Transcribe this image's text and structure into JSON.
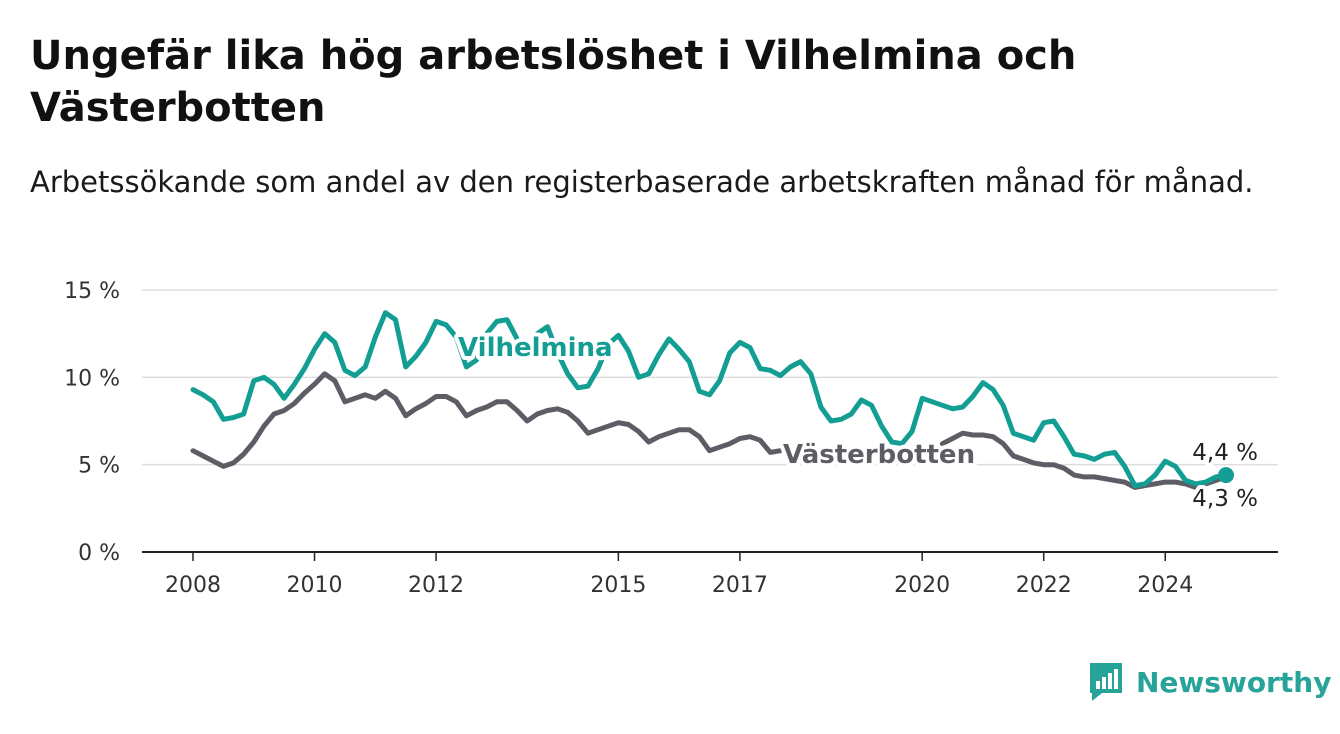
{
  "title": "Ungefär lika hög arbetslöshet i Vilhelmina och Västerbotten",
  "subtitle": "Arbetssökande som andel av den registerbaserade arbetskraften månad för månad.",
  "brand": {
    "name": "Newsworthy",
    "color": "#27a39a"
  },
  "colors": {
    "vilhelmina": "#139e94",
    "vasterbotten": "#5d5d66",
    "grid": "#dddddd",
    "axis": "#222222"
  },
  "chart_data": {
    "type": "line",
    "title": "Ungefär lika hög arbetslöshet i Vilhelmina och Västerbotten",
    "subtitle": "Arbetssökande som andel av den registerbaserade arbetskraften månad för månad.",
    "xlabel": "",
    "ylabel": "",
    "ylim": [
      0,
      15
    ],
    "yticks": [
      0,
      5,
      10,
      15
    ],
    "ytick_labels": [
      "0 %",
      "5 %",
      "10 %",
      "15 %"
    ],
    "xlim": [
      "2008-01",
      "2025-12"
    ],
    "xticks": [
      "2008",
      "2010",
      "2012",
      "2015",
      "2017",
      "2020",
      "2022",
      "2024"
    ],
    "grid": true,
    "legend": "inline labels on the lines",
    "series": [
      {
        "name": "Vilhelmina",
        "color": "#139e94",
        "points": [
          [
            "2008-01",
            9.3
          ],
          [
            "2008-03",
            9.0
          ],
          [
            "2008-05",
            8.6
          ],
          [
            "2008-07",
            7.6
          ],
          [
            "2008-09",
            7.7
          ],
          [
            "2008-11",
            7.9
          ],
          [
            "2009-01",
            9.8
          ],
          [
            "2009-03",
            10.0
          ],
          [
            "2009-05",
            9.6
          ],
          [
            "2009-07",
            8.8
          ],
          [
            "2009-09",
            9.6
          ],
          [
            "2009-11",
            10.5
          ],
          [
            "2010-01",
            11.6
          ],
          [
            "2010-03",
            12.5
          ],
          [
            "2010-05",
            12.0
          ],
          [
            "2010-07",
            10.4
          ],
          [
            "2010-09",
            10.1
          ],
          [
            "2010-11",
            10.6
          ],
          [
            "2011-01",
            12.3
          ],
          [
            "2011-03",
            13.7
          ],
          [
            "2011-05",
            13.3
          ],
          [
            "2011-07",
            10.6
          ],
          [
            "2011-09",
            11.2
          ],
          [
            "2011-11",
            12.0
          ],
          [
            "2012-01",
            13.2
          ],
          [
            "2012-03",
            13.0
          ],
          [
            "2012-05",
            12.3
          ],
          [
            "2012-07",
            10.6
          ],
          [
            "2012-09",
            11.0
          ],
          [
            "2012-11",
            12.5
          ],
          [
            "2013-01",
            13.2
          ],
          [
            "2013-03",
            13.3
          ],
          [
            "2013-05",
            12.2
          ],
          [
            "2013-07",
            11.5
          ],
          [
            "2013-09",
            12.5
          ],
          [
            "2013-11",
            12.9
          ],
          [
            "2014-01",
            11.4
          ],
          [
            "2014-03",
            10.2
          ],
          [
            "2014-05",
            9.4
          ],
          [
            "2014-07",
            9.5
          ],
          [
            "2014-09",
            10.5
          ],
          [
            "2014-11",
            11.9
          ],
          [
            "2015-01",
            12.4
          ],
          [
            "2015-03",
            11.5
          ],
          [
            "2015-05",
            10.0
          ],
          [
            "2015-07",
            10.2
          ],
          [
            "2015-09",
            11.3
          ],
          [
            "2015-11",
            12.2
          ],
          [
            "2016-01",
            11.6
          ],
          [
            "2016-03",
            10.9
          ],
          [
            "2016-05",
            9.2
          ],
          [
            "2016-07",
            9.0
          ],
          [
            "2016-09",
            9.8
          ],
          [
            "2016-11",
            11.4
          ],
          [
            "2017-01",
            12.0
          ],
          [
            "2017-03",
            11.7
          ],
          [
            "2017-05",
            10.5
          ],
          [
            "2017-07",
            10.4
          ],
          [
            "2017-09",
            10.1
          ],
          [
            "2017-11",
            10.6
          ],
          [
            "2018-01",
            10.9
          ],
          [
            "2018-03",
            10.2
          ],
          [
            "2018-05",
            8.3
          ],
          [
            "2018-07",
            7.5
          ],
          [
            "2018-09",
            7.6
          ],
          [
            "2018-11",
            7.9
          ],
          [
            "2019-01",
            8.7
          ],
          [
            "2019-03",
            8.4
          ],
          [
            "2019-05",
            7.2
          ],
          [
            "2019-07",
            6.3
          ],
          [
            "2019-09",
            6.2
          ],
          [
            "2019-11",
            6.9
          ],
          [
            "2020-01",
            8.8
          ],
          [
            "2020-03",
            8.6
          ],
          [
            "2020-05",
            8.4
          ],
          [
            "2020-07",
            8.2
          ],
          [
            "2020-09",
            8.3
          ],
          [
            "2020-11",
            8.9
          ],
          [
            "2021-01",
            9.7
          ],
          [
            "2021-03",
            9.3
          ],
          [
            "2021-05",
            8.4
          ],
          [
            "2021-07",
            6.8
          ],
          [
            "2021-09",
            6.6
          ],
          [
            "2021-11",
            6.4
          ],
          [
            "2022-01",
            7.4
          ],
          [
            "2022-03",
            7.5
          ],
          [
            "2022-05",
            6.6
          ],
          [
            "2022-07",
            5.6
          ],
          [
            "2022-09",
            5.5
          ],
          [
            "2022-11",
            5.3
          ],
          [
            "2023-01",
            5.6
          ],
          [
            "2023-03",
            5.7
          ],
          [
            "2023-05",
            4.9
          ],
          [
            "2023-07",
            3.8
          ],
          [
            "2023-09",
            3.9
          ],
          [
            "2023-11",
            4.4
          ],
          [
            "2024-01",
            5.2
          ],
          [
            "2024-03",
            4.9
          ],
          [
            "2024-05",
            4.1
          ],
          [
            "2024-07",
            3.9
          ],
          [
            "2024-09",
            4.0
          ],
          [
            "2024-11",
            4.3
          ],
          [
            "2025-01",
            4.4
          ]
        ]
      },
      {
        "name": "Västerbotten",
        "color": "#5d5d66",
        "points": [
          [
            "2008-01",
            5.8
          ],
          [
            "2008-03",
            5.5
          ],
          [
            "2008-05",
            5.2
          ],
          [
            "2008-07",
            4.9
          ],
          [
            "2008-09",
            5.1
          ],
          [
            "2008-11",
            5.6
          ],
          [
            "2009-01",
            6.3
          ],
          [
            "2009-03",
            7.2
          ],
          [
            "2009-05",
            7.9
          ],
          [
            "2009-07",
            8.1
          ],
          [
            "2009-09",
            8.5
          ],
          [
            "2009-11",
            9.1
          ],
          [
            "2010-01",
            9.6
          ],
          [
            "2010-03",
            10.2
          ],
          [
            "2010-05",
            9.8
          ],
          [
            "2010-07",
            8.6
          ],
          [
            "2010-09",
            8.8
          ],
          [
            "2010-11",
            9.0
          ],
          [
            "2011-01",
            8.8
          ],
          [
            "2011-03",
            9.2
          ],
          [
            "2011-05",
            8.8
          ],
          [
            "2011-07",
            7.8
          ],
          [
            "2011-09",
            8.2
          ],
          [
            "2011-11",
            8.5
          ],
          [
            "2012-01",
            8.9
          ],
          [
            "2012-03",
            8.9
          ],
          [
            "2012-05",
            8.6
          ],
          [
            "2012-07",
            7.8
          ],
          [
            "2012-09",
            8.1
          ],
          [
            "2012-11",
            8.3
          ],
          [
            "2013-01",
            8.6
          ],
          [
            "2013-03",
            8.6
          ],
          [
            "2013-05",
            8.1
          ],
          [
            "2013-07",
            7.5
          ],
          [
            "2013-09",
            7.9
          ],
          [
            "2013-11",
            8.1
          ],
          [
            "2014-01",
            8.2
          ],
          [
            "2014-03",
            8.0
          ],
          [
            "2014-05",
            7.5
          ],
          [
            "2014-07",
            6.8
          ],
          [
            "2014-09",
            7.0
          ],
          [
            "2014-11",
            7.2
          ],
          [
            "2015-01",
            7.4
          ],
          [
            "2015-03",
            7.3
          ],
          [
            "2015-05",
            6.9
          ],
          [
            "2015-07",
            6.3
          ],
          [
            "2015-09",
            6.6
          ],
          [
            "2015-11",
            6.8
          ],
          [
            "2016-01",
            7.0
          ],
          [
            "2016-03",
            7.0
          ],
          [
            "2016-05",
            6.6
          ],
          [
            "2016-07",
            5.8
          ],
          [
            "2016-09",
            6.0
          ],
          [
            "2016-11",
            6.2
          ],
          [
            "2017-01",
            6.5
          ],
          [
            "2017-03",
            6.6
          ],
          [
            "2017-05",
            6.4
          ],
          [
            "2017-07",
            5.7
          ],
          [
            "2017-09",
            5.8
          ]
        ],
        "points_after_gap": [
          [
            "2020-05",
            6.2
          ],
          [
            "2020-07",
            6.5
          ],
          [
            "2020-09",
            6.8
          ],
          [
            "2020-11",
            6.7
          ],
          [
            "2021-01",
            6.7
          ],
          [
            "2021-03",
            6.6
          ],
          [
            "2021-05",
            6.2
          ],
          [
            "2021-07",
            5.5
          ],
          [
            "2021-09",
            5.3
          ],
          [
            "2021-11",
            5.1
          ],
          [
            "2022-01",
            5.0
          ],
          [
            "2022-03",
            5.0
          ],
          [
            "2022-05",
            4.8
          ],
          [
            "2022-07",
            4.4
          ],
          [
            "2022-09",
            4.3
          ],
          [
            "2022-11",
            4.3
          ],
          [
            "2023-01",
            4.2
          ],
          [
            "2023-03",
            4.1
          ],
          [
            "2023-05",
            4.0
          ],
          [
            "2023-07",
            3.7
          ],
          [
            "2023-09",
            3.8
          ],
          [
            "2023-11",
            3.9
          ],
          [
            "2024-01",
            4.0
          ],
          [
            "2024-03",
            4.0
          ],
          [
            "2024-05",
            3.9
          ],
          [
            "2024-07",
            3.7
          ],
          [
            "2024-09",
            3.9
          ],
          [
            "2024-11",
            4.1
          ],
          [
            "2025-01",
            4.3
          ]
        ]
      }
    ],
    "end_labels": {
      "Vilhelmina": "4,4 %",
      "Västerbotten": "4,3 %"
    }
  }
}
